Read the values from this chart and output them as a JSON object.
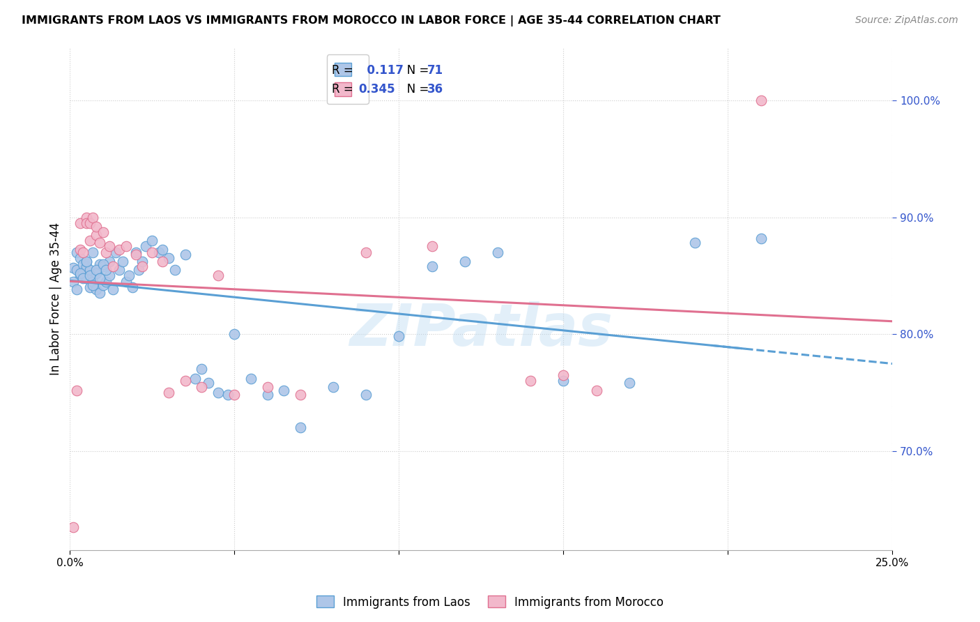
{
  "title": "IMMIGRANTS FROM LAOS VS IMMIGRANTS FROM MOROCCO IN LABOR FORCE | AGE 35-44 CORRELATION CHART",
  "source": "Source: ZipAtlas.com",
  "ylabel": "In Labor Force | Age 35-44",
  "x_min": 0.0,
  "x_max": 0.25,
  "y_min": 0.615,
  "y_max": 1.045,
  "y_ticks": [
    0.7,
    0.8,
    0.9,
    1.0
  ],
  "y_tick_labels": [
    "70.0%",
    "80.0%",
    "90.0%",
    "100.0%"
  ],
  "x_ticks": [
    0.0,
    0.05,
    0.1,
    0.15,
    0.2,
    0.25
  ],
  "x_tick_labels": [
    "0.0%",
    "",
    "",
    "",
    "",
    "25.0%"
  ],
  "laos_color": "#aec6e8",
  "laos_edge_color": "#5a9fd4",
  "morocco_color": "#f2b8cb",
  "morocco_edge_color": "#e07090",
  "laos_R": 0.117,
  "laos_N": 71,
  "morocco_R": 0.345,
  "morocco_N": 36,
  "trend_laos_color": "#5a9fd4",
  "trend_morocco_color": "#e07090",
  "watermark": "ZIPatlas",
  "legend_R_color": "#3355cc",
  "laos_x": [
    0.001,
    0.002,
    0.002,
    0.003,
    0.003,
    0.004,
    0.004,
    0.005,
    0.005,
    0.005,
    0.006,
    0.006,
    0.007,
    0.007,
    0.008,
    0.008,
    0.009,
    0.009,
    0.01,
    0.01,
    0.011,
    0.012,
    0.012,
    0.013,
    0.014,
    0.015,
    0.016,
    0.017,
    0.018,
    0.019,
    0.02,
    0.021,
    0.022,
    0.023,
    0.025,
    0.027,
    0.028,
    0.03,
    0.032,
    0.035,
    0.038,
    0.04,
    0.042,
    0.045,
    0.048,
    0.05,
    0.055,
    0.06,
    0.065,
    0.07,
    0.08,
    0.09,
    0.1,
    0.11,
    0.12,
    0.13,
    0.15,
    0.17,
    0.19,
    0.21,
    0.001,
    0.002,
    0.003,
    0.004,
    0.005,
    0.006,
    0.007,
    0.008,
    0.009,
    0.01,
    0.011
  ],
  "laos_y": [
    0.857,
    0.87,
    0.855,
    0.85,
    0.865,
    0.86,
    0.852,
    0.858,
    0.848,
    0.862,
    0.855,
    0.84,
    0.845,
    0.87,
    0.838,
    0.852,
    0.835,
    0.86,
    0.842,
    0.858,
    0.845,
    0.862,
    0.85,
    0.838,
    0.87,
    0.855,
    0.862,
    0.845,
    0.85,
    0.84,
    0.87,
    0.855,
    0.862,
    0.875,
    0.88,
    0.87,
    0.872,
    0.865,
    0.855,
    0.868,
    0.762,
    0.77,
    0.758,
    0.75,
    0.748,
    0.8,
    0.762,
    0.748,
    0.752,
    0.72,
    0.755,
    0.748,
    0.798,
    0.858,
    0.862,
    0.87,
    0.76,
    0.758,
    0.878,
    0.882,
    0.845,
    0.838,
    0.852,
    0.848,
    0.862,
    0.85,
    0.842,
    0.855,
    0.848,
    0.86,
    0.855
  ],
  "morocco_x": [
    0.001,
    0.002,
    0.003,
    0.003,
    0.004,
    0.005,
    0.005,
    0.006,
    0.006,
    0.007,
    0.008,
    0.008,
    0.009,
    0.01,
    0.011,
    0.012,
    0.013,
    0.015,
    0.017,
    0.02,
    0.022,
    0.025,
    0.028,
    0.03,
    0.035,
    0.04,
    0.045,
    0.05,
    0.06,
    0.07,
    0.09,
    0.11,
    0.14,
    0.15,
    0.16,
    0.21
  ],
  "morocco_y": [
    0.635,
    0.752,
    0.872,
    0.895,
    0.87,
    0.9,
    0.895,
    0.895,
    0.88,
    0.9,
    0.885,
    0.892,
    0.878,
    0.887,
    0.87,
    0.875,
    0.858,
    0.872,
    0.875,
    0.868,
    0.858,
    0.87,
    0.862,
    0.75,
    0.76,
    0.755,
    0.85,
    0.748,
    0.755,
    0.748,
    0.87,
    0.875,
    0.76,
    0.765,
    0.752,
    1.0
  ]
}
